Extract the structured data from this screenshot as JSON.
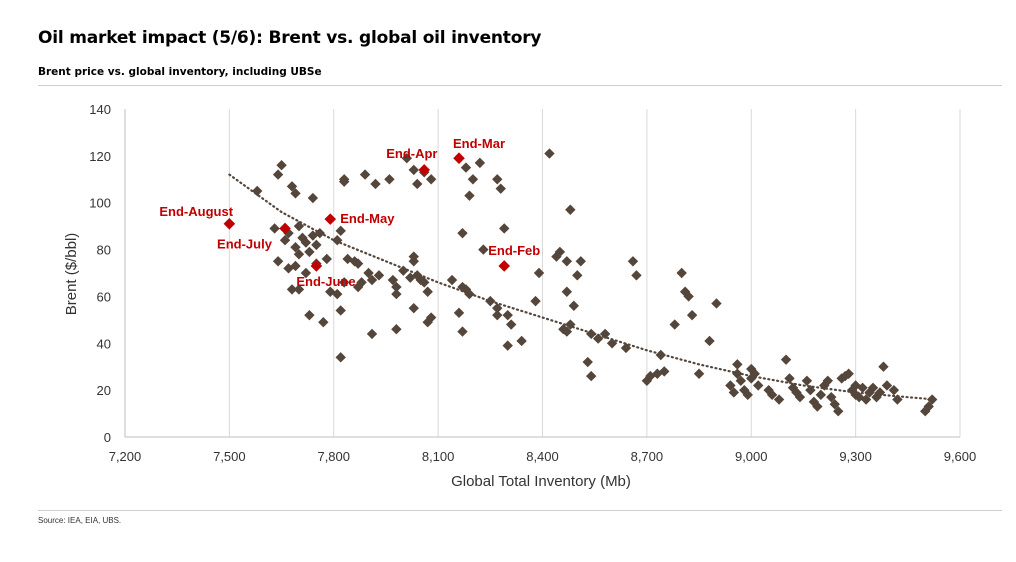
{
  "title": "Oil market impact (5/6): Brent vs. global oil inventory",
  "subtitle": "Brent price vs. global inventory, including UBSe",
  "source": "Source: IEA, EIA, UBS.",
  "chart_data": {
    "type": "scatter",
    "xlabel": "Global Total Inventory (Mb)",
    "ylabel": "Brent ($/bbl)",
    "xlim": [
      7200,
      9600
    ],
    "ylim": [
      0,
      140
    ],
    "x_ticks": [
      "7,200",
      "7,500",
      "7,800",
      "8,100",
      "8,400",
      "8,700",
      "9,000",
      "9,300",
      "9,600"
    ],
    "y_ticks": [
      "0",
      "20",
      "40",
      "60",
      "80",
      "100",
      "120",
      "140"
    ],
    "grid": "vertical",
    "colors": {
      "history": "#54463b",
      "highlight": "#c00000",
      "trend": "#54463b"
    },
    "trendline": {
      "style": "dotted",
      "x": [
        7500,
        7650,
        7800,
        7950,
        8100,
        8250,
        8400,
        8550,
        8700,
        8850,
        9000,
        9150,
        9300,
        9450,
        9530
      ],
      "y": [
        112,
        96,
        84,
        75,
        66,
        58,
        51,
        44,
        37,
        31,
        26,
        22,
        19,
        17,
        16
      ]
    },
    "history_points": [
      [
        7580,
        105
      ],
      [
        7650,
        116
      ],
      [
        7640,
        112
      ],
      [
        7680,
        107
      ],
      [
        7690,
        104
      ],
      [
        7630,
        89
      ],
      [
        7670,
        87
      ],
      [
        7700,
        90
      ],
      [
        7710,
        85
      ],
      [
        7720,
        83
      ],
      [
        7660,
        84
      ],
      [
        7690,
        81
      ],
      [
        7740,
        86
      ],
      [
        7750,
        82
      ],
      [
        7760,
        87
      ],
      [
        7730,
        79
      ],
      [
        7700,
        78
      ],
      [
        7640,
        75
      ],
      [
        7670,
        72
      ],
      [
        7690,
        73
      ],
      [
        7720,
        70
      ],
      [
        7750,
        74
      ],
      [
        7780,
        76
      ],
      [
        7680,
        63
      ],
      [
        7700,
        63
      ],
      [
        7730,
        52
      ],
      [
        7770,
        49
      ],
      [
        7790,
        62
      ],
      [
        7810,
        61
      ],
      [
        7820,
        34
      ],
      [
        7820,
        54
      ],
      [
        7830,
        66
      ],
      [
        7840,
        76
      ],
      [
        7810,
        84
      ],
      [
        7820,
        88
      ],
      [
        7790,
        93
      ],
      [
        7740,
        102
      ],
      [
        7830,
        109
      ],
      [
        7830,
        110
      ],
      [
        7890,
        112
      ],
      [
        7920,
        108
      ],
      [
        7960,
        110
      ],
      [
        8010,
        119
      ],
      [
        8030,
        114
      ],
      [
        8040,
        108
      ],
      [
        8080,
        110
      ],
      [
        8060,
        113
      ],
      [
        8180,
        115
      ],
      [
        8200,
        110
      ],
      [
        8220,
        117
      ],
      [
        8270,
        110
      ],
      [
        8280,
        106
      ],
      [
        8190,
        103
      ],
      [
        8170,
        87
      ],
      [
        8290,
        89
      ],
      [
        7860,
        75
      ],
      [
        7870,
        74
      ],
      [
        7900,
        70
      ],
      [
        7880,
        66
      ],
      [
        7870,
        64
      ],
      [
        7910,
        67
      ],
      [
        7930,
        69
      ],
      [
        7970,
        67
      ],
      [
        7980,
        64
      ],
      [
        7980,
        61
      ],
      [
        8000,
        71
      ],
      [
        8030,
        75
      ],
      [
        8030,
        77
      ],
      [
        8020,
        68
      ],
      [
        8040,
        69
      ],
      [
        8050,
        67
      ],
      [
        8060,
        66
      ],
      [
        8070,
        62
      ],
      [
        8030,
        55
      ],
      [
        7980,
        46
      ],
      [
        7910,
        44
      ],
      [
        8070,
        49
      ],
      [
        8080,
        51
      ],
      [
        8140,
        67
      ],
      [
        8170,
        64
      ],
      [
        8180,
        63
      ],
      [
        8190,
        61
      ],
      [
        8230,
        80
      ],
      [
        8250,
        58
      ],
      [
        8270,
        55
      ],
      [
        8270,
        52
      ],
      [
        8300,
        52
      ],
      [
        8310,
        48
      ],
      [
        8300,
        39
      ],
      [
        8340,
        41
      ],
      [
        8170,
        45
      ],
      [
        8160,
        53
      ],
      [
        8380,
        58
      ],
      [
        8390,
        70
      ],
      [
        8440,
        77
      ],
      [
        8450,
        79
      ],
      [
        8470,
        75
      ],
      [
        8470,
        45
      ],
      [
        8460,
        46
      ],
      [
        8480,
        48
      ],
      [
        8490,
        56
      ],
      [
        8470,
        62
      ],
      [
        8500,
        69
      ],
      [
        8510,
        75
      ],
      [
        8480,
        97
      ],
      [
        8420,
        121
      ],
      [
        8540,
        44
      ],
      [
        8560,
        42
      ],
      [
        8580,
        44
      ],
      [
        8600,
        40
      ],
      [
        8640,
        38
      ],
      [
        8530,
        32
      ],
      [
        8540,
        26
      ],
      [
        8660,
        75
      ],
      [
        8670,
        69
      ],
      [
        8740,
        35
      ],
      [
        8780,
        48
      ],
      [
        8800,
        70
      ],
      [
        8810,
        62
      ],
      [
        8820,
        60
      ],
      [
        8830,
        52
      ],
      [
        8850,
        27
      ],
      [
        8700,
        24
      ],
      [
        8710,
        26
      ],
      [
        8730,
        27
      ],
      [
        8750,
        28
      ],
      [
        8900,
        57
      ],
      [
        8880,
        41
      ],
      [
        8940,
        22
      ],
      [
        8950,
        19
      ],
      [
        8960,
        31
      ],
      [
        8960,
        27
      ],
      [
        8970,
        24
      ],
      [
        8980,
        20
      ],
      [
        8990,
        18
      ],
      [
        9000,
        29
      ],
      [
        9010,
        27
      ],
      [
        9000,
        25
      ],
      [
        9020,
        22
      ],
      [
        9050,
        20
      ],
      [
        9060,
        18
      ],
      [
        9080,
        16
      ],
      [
        9100,
        33
      ],
      [
        9110,
        25
      ],
      [
        9120,
        21
      ],
      [
        9130,
        19
      ],
      [
        9140,
        17
      ],
      [
        9160,
        24
      ],
      [
        9170,
        20
      ],
      [
        9180,
        15
      ],
      [
        9190,
        13
      ],
      [
        9200,
        18
      ],
      [
        9210,
        22
      ],
      [
        9220,
        24
      ],
      [
        9230,
        17
      ],
      [
        9240,
        14
      ],
      [
        9250,
        11
      ],
      [
        9260,
        25
      ],
      [
        9270,
        26
      ],
      [
        9280,
        27
      ],
      [
        9290,
        20
      ],
      [
        9300,
        18
      ],
      [
        9310,
        17
      ],
      [
        9320,
        21
      ],
      [
        9330,
        16
      ],
      [
        9340,
        19
      ],
      [
        9350,
        21
      ],
      [
        9360,
        17
      ],
      [
        9370,
        19
      ],
      [
        9380,
        30
      ],
      [
        9390,
        22
      ],
      [
        9410,
        20
      ],
      [
        9420,
        16
      ],
      [
        9500,
        11
      ],
      [
        9510,
        13
      ],
      [
        9520,
        16
      ],
      [
        9300,
        22
      ]
    ],
    "highlighted_points": [
      {
        "label": "End-Mar",
        "x": 8160,
        "y": 119
      },
      {
        "label": "End-Apr",
        "x": 8060,
        "y": 114
      },
      {
        "label": "End-May",
        "x": 7790,
        "y": 93
      },
      {
        "label": "End-August",
        "x": 7500,
        "y": 91
      },
      {
        "label": "End-July",
        "x": 7660,
        "y": 89
      },
      {
        "label": "End-June",
        "x": 7750,
        "y": 73
      },
      {
        "label": "End-Feb",
        "x": 8290,
        "y": 73
      }
    ]
  }
}
